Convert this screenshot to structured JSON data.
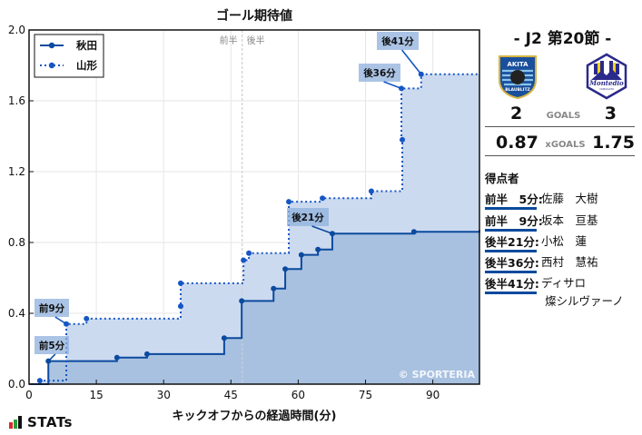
{
  "chart_data": {
    "type": "line",
    "subtype": "step",
    "title": "ゴール期待値",
    "xlabel": "キックオフからの経過時間(分)",
    "ylabel": "",
    "xlim": [
      0,
      100.4
    ],
    "ylim": [
      0,
      2.0
    ],
    "x_ticks": [
      0,
      15,
      30,
      45,
      60,
      75,
      90
    ],
    "y_ticks": [
      "0.0",
      "0.4",
      "0.8",
      "1.2",
      "1.6",
      "2.0"
    ],
    "grid": true,
    "legend_position": "upper-left",
    "halftime_marker": {
      "x": 47.5,
      "left_label": "前半",
      "right_label": "後半"
    },
    "watermark": "© SPORTERIA",
    "series": [
      {
        "name": "秋田",
        "style": "solid",
        "color": "#0b4a9e",
        "fill": "#a4bede",
        "points": [
          [
            0,
            0
          ],
          [
            4.3,
            0.13
          ],
          [
            19.6,
            0.15
          ],
          [
            26.3,
            0.17
          ],
          [
            43.5,
            0.26
          ],
          [
            47.4,
            0.47
          ],
          [
            54.5,
            0.54
          ],
          [
            57.1,
            0.65
          ],
          [
            60.7,
            0.73
          ],
          [
            64.4,
            0.76
          ],
          [
            67.6,
            0.85
          ],
          [
            85.8,
            0.86
          ],
          [
            100.4,
            0.87
          ]
        ],
        "final": 0.87
      },
      {
        "name": "山形",
        "style": "dotted",
        "color": "#1556c4",
        "fill": "#ccdaf0",
        "points": [
          [
            0,
            0
          ],
          [
            2.4,
            0.02
          ],
          [
            8.3,
            0.34
          ],
          [
            12.8,
            0.37
          ],
          [
            33.8,
            0.44
          ],
          [
            33.8,
            0.57
          ],
          [
            47.8,
            0.7
          ],
          [
            49.0,
            0.74
          ],
          [
            57.9,
            1.03
          ],
          [
            65.4,
            1.05
          ],
          [
            76.3,
            1.09
          ],
          [
            83.2,
            1.38
          ],
          [
            83.0,
            1.67
          ],
          [
            87.4,
            1.75
          ],
          [
            100.4,
            1.75
          ]
        ],
        "final": 1.75
      }
    ],
    "annotations": [
      {
        "label": "前5分",
        "team": "秋田",
        "x": 4.3,
        "y": 0.13
      },
      {
        "label": "前9分",
        "team": "山形",
        "x": 8.3,
        "y": 0.34
      },
      {
        "label": "後21分",
        "team": "秋田",
        "x": 67.6,
        "y": 0.85
      },
      {
        "label": "後36分",
        "team": "山形",
        "x": 83.0,
        "y": 1.67
      },
      {
        "label": "後41分",
        "team": "山形",
        "x": 87.4,
        "y": 1.75
      }
    ]
  },
  "match": {
    "round": "- J2 第20節 -",
    "home": {
      "name": "秋田",
      "logo": "akita-blaublitz-crest",
      "goals": "2",
      "xg": "0.87"
    },
    "away": {
      "name": "山形",
      "logo": "montedio-yamagata-crest",
      "goals": "3",
      "xg": "1.75"
    },
    "goals_label": "GOALS",
    "xgoals_label": "xGOALS"
  },
  "scorers": {
    "title": "得点者",
    "items": [
      {
        "time": "前半　5分:",
        "name": "佐藤　大樹"
      },
      {
        "time": "前半　9分:",
        "name": "坂本　亘基"
      },
      {
        "time": "後半21分:",
        "name": "小松　蓮"
      },
      {
        "time": "後半36分:",
        "name": "西村　慧祐"
      },
      {
        "time": "後半41分:",
        "name": "ディサロ",
        "name2": "燦シルヴァーノ"
      }
    ]
  },
  "brand": {
    "text": "STATs",
    "bar_colors": [
      "#d62b2b",
      "#2a9d3a",
      "#111111"
    ]
  }
}
